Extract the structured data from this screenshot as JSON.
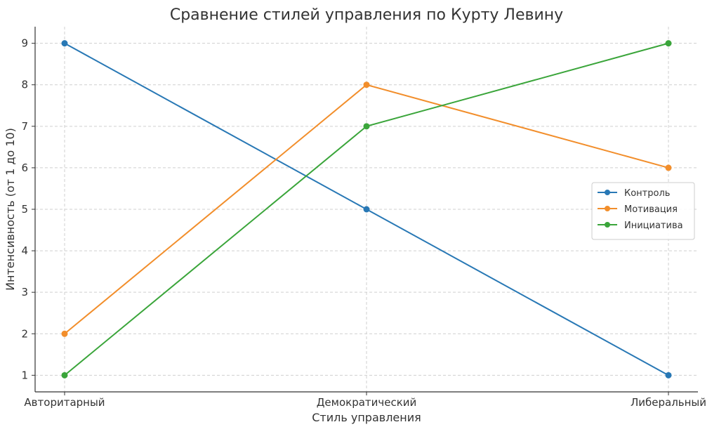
{
  "chart_data": {
    "type": "line",
    "title": "Сравнение стилей управления по Курту Левину",
    "xlabel": "Стиль управления",
    "ylabel": "Интенсивность (от 1 до 10)",
    "categories": [
      "Авторитарный",
      "Демократический",
      "Либеральный"
    ],
    "ylim": [
      0.6,
      9.4
    ],
    "yticks": [
      1,
      2,
      3,
      4,
      5,
      6,
      7,
      8,
      9
    ],
    "grid": true,
    "legend_position": "right",
    "series": [
      {
        "name": "Контроль",
        "values": [
          9,
          5,
          1
        ],
        "color": "#2878b5"
      },
      {
        "name": "Мотивация",
        "values": [
          2,
          8,
          6
        ],
        "color": "#f28e2b"
      },
      {
        "name": "Инициатива",
        "values": [
          1,
          7,
          9
        ],
        "color": "#3aa53a"
      }
    ]
  }
}
